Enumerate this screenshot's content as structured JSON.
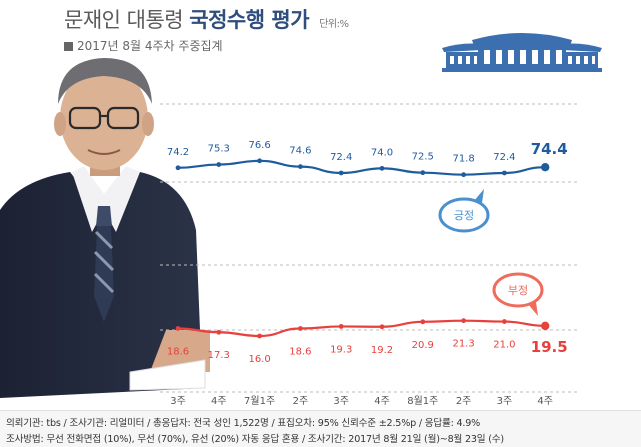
{
  "header": {
    "title_light": "문재인 대통령",
    "title_bold": "국정수행 평가",
    "unit": "단위:%",
    "subtitle": "2017년 8월 4주차 주중집계"
  },
  "footer": {
    "line1": "의뢰기관: tbs / 조사기관: 리얼미터 / 총응답자: 전국 성인 1,522명 / 표집오차: 95% 신뢰수준 ±2.5%p / 응답률: 4.9%",
    "line2": "조사방법: 무선 전화면접 (10%), 무선 (70%), 유선 (20%) 자동 응답 혼용 / 조사기간: 2017년 8월 21일 (월)~8월 23일 (수)"
  },
  "colors": {
    "positive": "#1f5c9e",
    "negative": "#e8403c",
    "positive_bubble": "#4a90cf",
    "negative_bubble": "#ef6b5c"
  },
  "chart_data": {
    "type": "line",
    "title": "문재인 대통령 국정수행 평가",
    "categories": [
      "3주",
      "4주",
      "7월1주",
      "2주",
      "3주",
      "4주",
      "8월1주",
      "2주",
      "3주",
      "4주"
    ],
    "series": [
      {
        "name": "긍정",
        "values": [
          74.2,
          75.3,
          76.6,
          74.6,
          72.4,
          74.0,
          72.5,
          71.8,
          72.4,
          74.4
        ],
        "labels": [
          "74.2",
          "75.3",
          "76.6",
          "74.6",
          "72.4",
          "74.0",
          "72.5",
          "71.8",
          "72.4",
          "74.4"
        ]
      },
      {
        "name": "부정",
        "values": [
          18.6,
          17.3,
          16.0,
          18.6,
          19.3,
          19.2,
          20.9,
          21.3,
          21.0,
          19.5
        ],
        "labels": [
          "18.6",
          "17.3",
          "16.0",
          "18.6",
          "19.3",
          "19.2",
          "20.9",
          "21.3",
          "21.0",
          "19.5"
        ]
      }
    ],
    "grid": true,
    "legend": "inline bubbles"
  }
}
